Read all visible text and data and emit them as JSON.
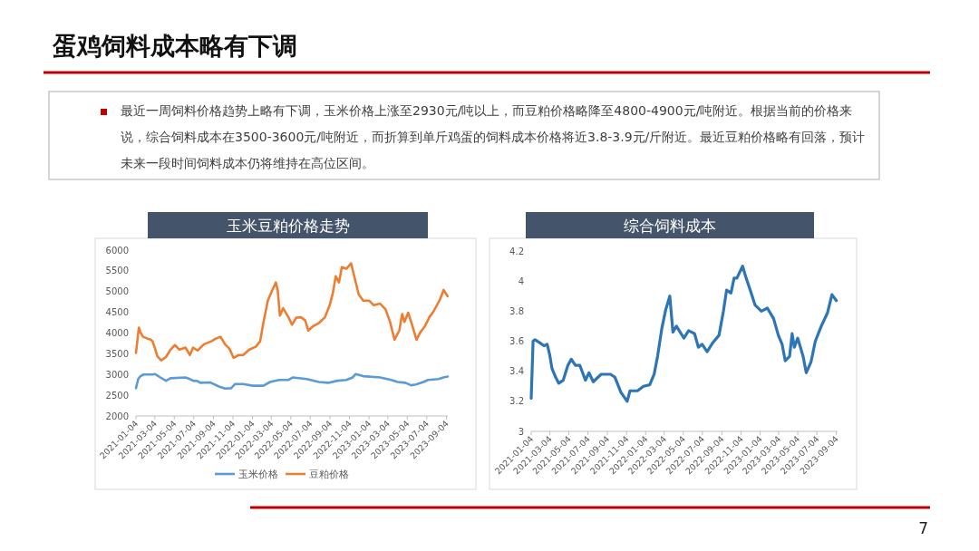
{
  "chart_data": [
    {
      "type": "other",
      "title": "蛋鸡饲料成本略有下调",
      "annotations": [
        "最近一周饲料价格趋势上略有下调，玉米价格上涨至2930元/吨以上，而豆粕价格略降至4800-4900元/吨附近。根据当前的价格来说，综合饲料成本在3500-3600元/吨附近，而折算到单斤鸡蛋的饲料成本价格将近3.8-3.9元/斤附近。最近豆粕价格略有回落，预计未来一段时间饲料成本仍将维持在高位区间。",
        "7"
      ]
    },
    {
      "type": "line",
      "title": "玉米豆粕价格走势",
      "xlim": [
        "2021-01-04",
        "2023-09-08"
      ],
      "ylim": [
        2000,
        6000
      ],
      "xticks": [
        "2021-01-04",
        "2021-03-04",
        "2021-05-04",
        "2021-07-04",
        "2021-09-04",
        "2021-11-04",
        "2022-01-04",
        "2022-03-04",
        "2022-05-04",
        "2022-07-04",
        "2022-09-04",
        "2022-11-04",
        "2023-01-04",
        "2023-03-04",
        "2023-05-04",
        "2023-07-04",
        "2023-09-04"
      ],
      "yticks": [
        2000,
        2500,
        3000,
        3500,
        4000,
        4500,
        5000,
        5500,
        6000
      ],
      "legend": "bottom",
      "series": [
        {
          "name": "玉米价格",
          "color": "#5b9bd5",
          "x": [
            "2021-01-04",
            "2021-01-11",
            "2021-01-18",
            "2021-01-28",
            "2021-02-25",
            "2021-03-05",
            "2021-03-19",
            "2021-04-08",
            "2021-04-22",
            "2021-06-08",
            "2021-06-22",
            "2021-07-02",
            "2021-07-16",
            "2021-07-25",
            "2021-08-24",
            "2021-09-21",
            "2021-10-10",
            "2021-10-29",
            "2021-11-10",
            "2021-12-06",
            "2022-01-05",
            "2022-02-07",
            "2022-02-28",
            "2022-03-29",
            "2022-04-27",
            "2022-05-11",
            "2022-06-23",
            "2022-07-31",
            "2022-08-29",
            "2022-09-27",
            "2022-10-25",
            "2022-11-14",
            "2022-11-23",
            "2022-12-17",
            "2023-02-08",
            "2023-03-15",
            "2023-04-04",
            "2023-04-28",
            "2023-05-16",
            "2023-05-31",
            "2023-06-24",
            "2023-07-08",
            "2023-08-10",
            "2023-08-25",
            "2023-09-08"
          ],
          "values": [
            2670,
            2890,
            2960,
            3000,
            3000,
            3010,
            2940,
            2850,
            2910,
            2930,
            2890,
            2850,
            2840,
            2800,
            2810,
            2710,
            2660,
            2670,
            2770,
            2770,
            2730,
            2730,
            2820,
            2870,
            2870,
            2930,
            2890,
            2820,
            2800,
            2850,
            2870,
            2930,
            3010,
            2960,
            2930,
            2870,
            2820,
            2800,
            2740,
            2760,
            2820,
            2870,
            2890,
            2930,
            2950
          ]
        },
        {
          "name": "豆粕价格",
          "color": "#ed7d31",
          "x": [
            "2021-01-04",
            "2021-01-13",
            "2021-01-18",
            "2021-01-26",
            "2021-02-11",
            "2021-02-20",
            "2021-02-25",
            "2021-03-05",
            "2021-03-12",
            "2021-03-24",
            "2021-04-08",
            "2021-04-22",
            "2021-05-06",
            "2021-05-20",
            "2021-06-08",
            "2021-06-22",
            "2021-07-02",
            "2021-07-16",
            "2021-08-05",
            "2021-08-28",
            "2021-09-12",
            "2021-09-26",
            "2021-10-10",
            "2021-10-24",
            "2021-11-06",
            "2021-11-22",
            "2021-12-06",
            "2021-12-25",
            "2022-01-14",
            "2022-01-28",
            "2022-02-07",
            "2022-02-21",
            "2022-03-05",
            "2022-03-18",
            "2022-03-24",
            "2022-03-31",
            "2022-04-10",
            "2022-04-27",
            "2022-05-08",
            "2022-05-21",
            "2022-06-05",
            "2022-06-18",
            "2022-06-28",
            "2022-07-12",
            "2022-07-31",
            "2022-08-19",
            "2022-09-03",
            "2022-09-13",
            "2022-09-22",
            "2022-10-02",
            "2022-10-11",
            "2022-10-25",
            "2022-11-09",
            "2022-11-18",
            "2022-12-03",
            "2022-12-17",
            "2023-01-05",
            "2023-01-19",
            "2023-02-08",
            "2023-02-25",
            "2023-03-11",
            "2023-03-25",
            "2023-04-09",
            "2023-04-18",
            "2023-04-25",
            "2023-05-07",
            "2023-05-19",
            "2023-06-02",
            "2023-06-14",
            "2023-06-28",
            "2023-07-12",
            "2023-07-26",
            "2023-08-15",
            "2023-08-26",
            "2023-09-07"
          ],
          "values": [
            3520,
            4130,
            4020,
            3910,
            3860,
            3840,
            3800,
            3620,
            3440,
            3340,
            3420,
            3600,
            3710,
            3600,
            3650,
            3470,
            3650,
            3580,
            3730,
            3800,
            3870,
            3910,
            3730,
            3620,
            3400,
            3470,
            3470,
            3600,
            3670,
            3800,
            4240,
            4780,
            5000,
            5220,
            5040,
            4420,
            4600,
            4380,
            4200,
            4370,
            4380,
            4310,
            4060,
            4160,
            4240,
            4380,
            4670,
            4970,
            5370,
            5220,
            5590,
            5550,
            5680,
            5400,
            4930,
            4780,
            4780,
            4670,
            4710,
            4570,
            4270,
            3840,
            4060,
            4460,
            4270,
            4490,
            4200,
            3840,
            4020,
            4160,
            4380,
            4530,
            4820,
            5040,
            4890
          ]
        }
      ]
    },
    {
      "type": "line",
      "title": "综合饲料成本",
      "xlim": [
        "2021-01-04",
        "2023-09-08"
      ],
      "ylim": [
        3,
        4.2
      ],
      "xticks": [
        "2021-01-04",
        "2021-03-04",
        "2021-05-04",
        "2021-07-04",
        "2021-09-04",
        "2021-11-04",
        "2022-01-04",
        "2022-03-04",
        "2022-05-04",
        "2022-07-04",
        "2022-09-04",
        "2022-11-04",
        "2023-01-04",
        "2023-03-04",
        "2023-05-04",
        "2023-07-04",
        "2023-09-04"
      ],
      "yticks": [
        3,
        3.2,
        3.4,
        3.6,
        3.8,
        4,
        4.2
      ],
      "series": [
        {
          "color": "#2e75b6",
          "x": [
            "2021-01-04",
            "2021-01-10",
            "2021-01-16",
            "2021-01-31",
            "2021-02-14",
            "2021-02-24",
            "2021-03-04",
            "2021-03-11",
            "2021-03-23",
            "2021-04-02",
            "2021-04-16",
            "2021-05-01",
            "2021-05-12",
            "2021-05-25",
            "2021-06-08",
            "2021-06-26",
            "2021-07-07",
            "2021-07-21",
            "2021-08-15",
            "2021-09-14",
            "2021-09-28",
            "2021-10-17",
            "2021-11-06",
            "2021-11-15",
            "2021-12-09",
            "2021-12-28",
            "2022-01-17",
            "2022-01-31",
            "2022-02-11",
            "2022-02-25",
            "2022-03-09",
            "2022-03-22",
            "2022-04-01",
            "2022-04-12",
            "2022-05-06",
            "2022-05-21",
            "2022-06-09",
            "2022-06-21",
            "2022-07-03",
            "2022-07-19",
            "2022-08-06",
            "2022-08-26",
            "2022-09-09",
            "2022-09-19",
            "2022-10-03",
            "2022-10-13",
            "2022-10-22",
            "2022-11-09",
            "2022-11-19",
            "2022-12-05",
            "2022-12-19",
            "2023-01-08",
            "2023-01-27",
            "2023-02-16",
            "2023-03-03",
            "2023-03-15",
            "2023-03-25",
            "2023-04-08",
            "2023-04-16",
            "2023-04-23",
            "2023-05-04",
            "2023-05-21",
            "2023-05-31",
            "2023-06-15",
            "2023-06-29",
            "2023-07-18",
            "2023-08-07",
            "2023-08-21",
            "2023-09-04"
          ],
          "values": [
            3.22,
            3.6,
            3.61,
            3.59,
            3.57,
            3.58,
            3.51,
            3.42,
            3.36,
            3.32,
            3.34,
            3.44,
            3.48,
            3.44,
            3.44,
            3.34,
            3.39,
            3.33,
            3.38,
            3.38,
            3.36,
            3.26,
            3.2,
            3.27,
            3.27,
            3.3,
            3.31,
            3.38,
            3.5,
            3.69,
            3.81,
            3.9,
            3.66,
            3.7,
            3.62,
            3.67,
            3.65,
            3.56,
            3.58,
            3.53,
            3.59,
            3.64,
            3.8,
            3.94,
            3.92,
            4.02,
            4.02,
            4.1,
            4.03,
            3.93,
            3.84,
            3.8,
            3.82,
            3.75,
            3.64,
            3.58,
            3.47,
            3.5,
            3.65,
            3.56,
            3.62,
            3.5,
            3.39,
            3.46,
            3.6,
            3.7,
            3.79,
            3.91,
            3.87
          ]
        }
      ]
    }
  ]
}
